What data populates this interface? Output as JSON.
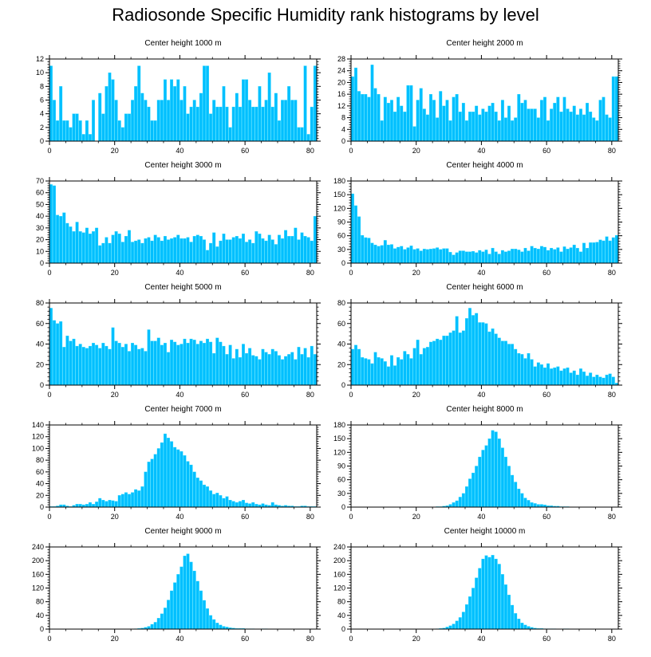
{
  "figure_title": "Radiosonde Specific Humidity rank histograms by level",
  "colors": {
    "bar": "#00bfff",
    "bar_edge": "#33ddff",
    "axis": "#000000"
  },
  "chart_data": [
    {
      "type": "bar",
      "title": "Center height 1000 m",
      "xlim": [
        0,
        82
      ],
      "ylim": [
        0,
        12
      ],
      "xticks": [
        0,
        20,
        40,
        60,
        80
      ],
      "yticks": [
        0,
        2,
        4,
        6,
        8,
        10,
        12
      ],
      "values": [
        11,
        6,
        3,
        8,
        3,
        3,
        2,
        4,
        4,
        3,
        1,
        3,
        1,
        6,
        0,
        7,
        4,
        8,
        10,
        9,
        6,
        3,
        2,
        4,
        4,
        6,
        8,
        11,
        7,
        6,
        5,
        3,
        3,
        6,
        6,
        9,
        6,
        9,
        8,
        9,
        6,
        8,
        4,
        5,
        6,
        5,
        7,
        11,
        11,
        4,
        6,
        5,
        5,
        8,
        5,
        2,
        5,
        7,
        5,
        9,
        9,
        6,
        5,
        5,
        8,
        5,
        6,
        10,
        5,
        7,
        3,
        6,
        6,
        8,
        6,
        6,
        2,
        2,
        11,
        1,
        5,
        11
      ]
    },
    {
      "type": "bar",
      "title": "Center height 2000 m",
      "xlim": [
        0,
        82
      ],
      "ylim": [
        0,
        28
      ],
      "xticks": [
        0,
        20,
        40,
        60,
        80
      ],
      "yticks": [
        0,
        4,
        8,
        12,
        16,
        20,
        24,
        28
      ],
      "values": [
        22,
        25,
        17,
        16,
        16,
        15,
        26,
        18,
        16,
        7,
        15,
        13,
        14,
        10,
        15,
        12,
        10,
        19,
        19,
        5,
        14,
        18,
        11,
        9,
        16,
        14,
        8,
        17,
        12,
        14,
        7,
        15,
        16,
        10,
        13,
        7,
        10,
        10,
        12,
        9,
        11,
        10,
        12,
        13,
        10,
        7,
        14,
        8,
        12,
        7,
        8,
        16,
        13,
        14,
        11,
        11,
        11,
        8,
        14,
        15,
        7,
        11,
        13,
        15,
        10,
        15,
        11,
        10,
        12,
        9,
        11,
        9,
        13,
        10,
        8,
        7,
        14,
        15,
        9,
        8,
        22,
        22
      ]
    },
    {
      "type": "bar",
      "title": "Center height 3000 m",
      "xlim": [
        0,
        82
      ],
      "ylim": [
        0,
        70
      ],
      "xticks": [
        0,
        20,
        40,
        60,
        80
      ],
      "yticks": [
        0,
        10,
        20,
        30,
        40,
        50,
        60,
        70
      ],
      "values": [
        67,
        66,
        41,
        40,
        43,
        34,
        31,
        27,
        35,
        27,
        26,
        30,
        25,
        27,
        30,
        15,
        17,
        22,
        17,
        24,
        27,
        25,
        18,
        23,
        28,
        18,
        19,
        20,
        17,
        21,
        22,
        19,
        24,
        22,
        19,
        23,
        20,
        21,
        22,
        24,
        21,
        21,
        22,
        18,
        23,
        24,
        23,
        20,
        11,
        17,
        26,
        14,
        19,
        25,
        20,
        20,
        22,
        23,
        21,
        25,
        18,
        20,
        17,
        27,
        25,
        21,
        19,
        24,
        20,
        16,
        24,
        21,
        28,
        23,
        23,
        30,
        20,
        26,
        23,
        22,
        19,
        40
      ]
    },
    {
      "type": "bar",
      "title": "Center height 4000 m",
      "xlim": [
        0,
        82
      ],
      "ylim": [
        0,
        180
      ],
      "xticks": [
        0,
        20,
        40,
        60,
        80
      ],
      "yticks": [
        0,
        30,
        60,
        90,
        120,
        150,
        180
      ],
      "values": [
        152,
        126,
        102,
        61,
        56,
        55,
        44,
        40,
        37,
        39,
        50,
        40,
        41,
        32,
        35,
        37,
        30,
        34,
        38,
        30,
        32,
        27,
        31,
        30,
        31,
        32,
        34,
        30,
        32,
        32,
        24,
        18,
        23,
        27,
        27,
        25,
        25,
        26,
        23,
        28,
        25,
        29,
        20,
        33,
        25,
        20,
        28,
        25,
        27,
        31,
        31,
        29,
        25,
        33,
        27,
        37,
        33,
        31,
        37,
        35,
        28,
        33,
        30,
        34,
        25,
        36,
        31,
        34,
        40,
        33,
        25,
        44,
        33,
        45,
        45,
        46,
        51,
        49,
        58,
        49,
        56,
        61
      ]
    },
    {
      "type": "bar",
      "title": "Center height 5000 m",
      "xlim": [
        0,
        82
      ],
      "ylim": [
        0,
        80
      ],
      "xticks": [
        0,
        20,
        40,
        60,
        80
      ],
      "yticks": [
        0,
        20,
        40,
        60,
        80
      ],
      "values": [
        75,
        63,
        60,
        62,
        37,
        48,
        43,
        45,
        38,
        40,
        37,
        36,
        38,
        41,
        39,
        36,
        41,
        38,
        35,
        56,
        43,
        41,
        37,
        40,
        33,
        41,
        39,
        35,
        36,
        33,
        54,
        43,
        43,
        46,
        39,
        41,
        32,
        44,
        42,
        39,
        40,
        45,
        41,
        45,
        44,
        40,
        43,
        41,
        45,
        42,
        31,
        46,
        42,
        38,
        30,
        39,
        26,
        35,
        27,
        40,
        31,
        36,
        29,
        28,
        25,
        35,
        32,
        30,
        35,
        33,
        29,
        25,
        28,
        30,
        32,
        25,
        37,
        30,
        36,
        27,
        38,
        30
      ]
    },
    {
      "type": "bar",
      "title": "Center height 6000 m",
      "xlim": [
        0,
        82
      ],
      "ylim": [
        0,
        80
      ],
      "xticks": [
        0,
        20,
        40,
        60,
        80
      ],
      "yticks": [
        0,
        20,
        40,
        60,
        80
      ],
      "values": [
        35,
        39,
        35,
        27,
        26,
        25,
        21,
        32,
        27,
        26,
        23,
        18,
        29,
        19,
        27,
        25,
        33,
        30,
        26,
        36,
        44,
        30,
        36,
        37,
        42,
        43,
        45,
        44,
        48,
        48,
        51,
        53,
        67,
        51,
        53,
        65,
        75,
        68,
        70,
        61,
        61,
        60,
        52,
        55,
        50,
        46,
        43,
        43,
        40,
        40,
        35,
        31,
        30,
        26,
        31,
        25,
        18,
        22,
        20,
        17,
        21,
        16,
        17,
        18,
        14,
        16,
        17,
        12,
        14,
        10,
        16,
        13,
        9,
        12,
        8,
        10,
        8,
        7,
        10,
        11,
        8,
        2
      ]
    },
    {
      "type": "bar",
      "title": "Center height 7000 m",
      "xlim": [
        0,
        82
      ],
      "ylim": [
        0,
        140
      ],
      "xticks": [
        0,
        20,
        40,
        60,
        80
      ],
      "yticks": [
        0,
        20,
        40,
        60,
        80,
        100,
        120,
        140
      ],
      "values": [
        1,
        1,
        2,
        4,
        4,
        2,
        1,
        3,
        5,
        5,
        4,
        5,
        8,
        5,
        9,
        15,
        12,
        10,
        12,
        11,
        10,
        20,
        22,
        25,
        22,
        25,
        30,
        28,
        35,
        60,
        77,
        82,
        90,
        100,
        110,
        125,
        118,
        112,
        102,
        98,
        95,
        88,
        78,
        72,
        60,
        50,
        45,
        38,
        35,
        28,
        22,
        24,
        20,
        15,
        18,
        12,
        10,
        8,
        10,
        12,
        7,
        6,
        8,
        5,
        4,
        6,
        4,
        3,
        8,
        4,
        3,
        2,
        3,
        2,
        2,
        1,
        1,
        2,
        2,
        1,
        1,
        1
      ]
    },
    {
      "type": "bar",
      "title": "Center height 8000 m",
      "xlim": [
        0,
        82
      ],
      "ylim": [
        0,
        180
      ],
      "xticks": [
        0,
        20,
        40,
        60,
        80
      ],
      "yticks": [
        0,
        30,
        60,
        90,
        120,
        150,
        180
      ],
      "values": [
        0,
        0,
        0,
        0,
        0,
        0,
        0,
        0,
        0,
        0,
        0,
        0,
        0,
        0,
        0,
        0,
        0,
        0,
        0,
        0,
        0,
        0,
        0,
        0,
        0,
        0,
        1,
        1,
        2,
        3,
        6,
        10,
        14,
        22,
        30,
        45,
        62,
        75,
        90,
        110,
        125,
        135,
        150,
        168,
        165,
        150,
        130,
        110,
        90,
        70,
        55,
        40,
        30,
        20,
        15,
        10,
        8,
        6,
        6,
        5,
        3,
        3,
        2,
        2,
        1,
        1,
        1,
        0,
        0,
        0,
        0,
        0,
        0,
        0,
        0,
        0,
        0,
        0,
        0,
        0,
        0,
        0
      ]
    },
    {
      "type": "bar",
      "title": "Center height 9000 m",
      "xlim": [
        0,
        82
      ],
      "ylim": [
        0,
        240
      ],
      "xticks": [
        0,
        20,
        40,
        60,
        80
      ],
      "yticks": [
        0,
        40,
        80,
        120,
        160,
        200,
        240
      ],
      "values": [
        0,
        0,
        0,
        0,
        0,
        0,
        0,
        0,
        0,
        0,
        0,
        0,
        0,
        0,
        0,
        0,
        0,
        0,
        0,
        0,
        0,
        0,
        0,
        0,
        0,
        0,
        1,
        2,
        3,
        5,
        8,
        14,
        20,
        32,
        45,
        62,
        85,
        112,
        136,
        160,
        182,
        214,
        220,
        196,
        170,
        140,
        112,
        84,
        60,
        40,
        28,
        18,
        12,
        8,
        6,
        4,
        3,
        2,
        2,
        2,
        1,
        1,
        1,
        0,
        0,
        1,
        1,
        0,
        0,
        0,
        0,
        0,
        0,
        0,
        0,
        0,
        0,
        0,
        0,
        0,
        0,
        0
      ]
    },
    {
      "type": "bar",
      "title": "Center height 10000 m",
      "xlim": [
        0,
        82
      ],
      "ylim": [
        0,
        240
      ],
      "xticks": [
        0,
        20,
        40,
        60,
        80
      ],
      "yticks": [
        0,
        40,
        80,
        120,
        160,
        200,
        240
      ],
      "values": [
        0,
        0,
        0,
        0,
        0,
        0,
        0,
        0,
        0,
        0,
        0,
        0,
        0,
        0,
        0,
        0,
        0,
        0,
        0,
        0,
        0,
        0,
        0,
        0,
        0,
        0,
        1,
        2,
        3,
        6,
        10,
        15,
        24,
        34,
        50,
        72,
        95,
        120,
        150,
        178,
        205,
        215,
        210,
        216,
        205,
        190,
        160,
        130,
        100,
        70,
        46,
        30,
        18,
        12,
        8,
        5,
        3,
        2,
        2,
        1,
        1,
        1,
        1,
        0,
        0,
        1,
        1,
        0,
        0,
        0,
        0,
        0,
        0,
        0,
        0,
        0,
        0,
        0,
        0,
        0,
        0,
        0
      ]
    }
  ]
}
